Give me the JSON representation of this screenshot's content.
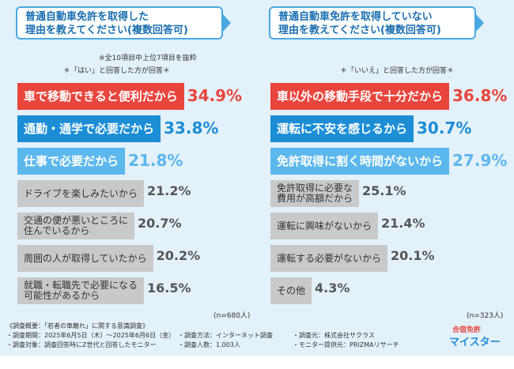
{
  "chart_data": [
    {
      "type": "bar",
      "orientation": "horizontal",
      "title": "普通自動車免許を取得した\n理由を教えてください(複数回答可)",
      "notes": [
        "※全10項目中上位7項目を抜粋",
        "＊「はい」と回答した方が回答＊"
      ],
      "sample_size": "(n=680人)",
      "categories": [
        "車で移動できると便利だから",
        "通勤・通学で必要だから",
        "仕事で必要だから",
        "ドライブを楽しみたいから",
        "交通の便が悪いところに\n住んでいるから",
        "周囲の人が取得していたから",
        "就職・転職先で必要になる\n可能性があるから"
      ],
      "values": [
        34.9,
        33.8,
        21.8,
        21.2,
        20.7,
        20.2,
        16.5
      ],
      "value_labels": [
        "34.9%",
        "33.8%",
        "21.8%",
        "21.2%",
        "20.7%",
        "20.2%",
        "16.5%"
      ],
      "colors": [
        "#e8453c",
        "#1b8ed6",
        "#5bb8ec",
        "#c9c9c9",
        "#c9c9c9",
        "#c9c9c9",
        "#c9c9c9"
      ],
      "value_colors": [
        "#e8453c",
        "#1b8ed6",
        "#5bb8ec",
        "#555555",
        "#555555",
        "#555555",
        "#555555"
      ]
    },
    {
      "type": "bar",
      "orientation": "horizontal",
      "title": "普通自動車免許を取得していない\n理由を教えてください(複数回答可)",
      "notes": [
        "＊「いいえ」と回答した方が回答＊"
      ],
      "sample_size": "(n=323人)",
      "categories": [
        "車以外の移動手段で十分だから",
        "運転に不安を感じるから",
        "免許取得に割く時間がないから",
        "免許取得に必要な\n費用が高額だから",
        "運転に興味がないから",
        "運転する必要がないから",
        "その他"
      ],
      "values": [
        36.8,
        30.7,
        27.9,
        25.1,
        21.4,
        20.1,
        4.3
      ],
      "value_labels": [
        "36.8%",
        "30.7%",
        "27.9%",
        "25.1%",
        "21.4%",
        "20.1%",
        "4.3%"
      ],
      "colors": [
        "#e8453c",
        "#1b8ed6",
        "#5bb8ec",
        "#c9c9c9",
        "#c9c9c9",
        "#c9c9c9",
        "#c9c9c9"
      ],
      "value_colors": [
        "#e8453c",
        "#1b8ed6",
        "#5bb8ec",
        "#555555",
        "#555555",
        "#555555",
        "#555555"
      ]
    }
  ],
  "footer": {
    "lines": [
      [
        "《調査概要：「若者の車離れ」に関する意識調査》"
      ],
      [
        "・調査期間：2025年6月5日（木）～2025年6月6日（金）",
        "・調査方法：インターネット調査",
        "・調査元：株式会社サクラス"
      ],
      [
        "・調査対象：調査回答時にZ世代と回答したモニター",
        "・調査人数：1,003人",
        "・モニター提供元：PRIZMAリサーチ"
      ]
    ]
  },
  "logo": {
    "top": "合宿免許",
    "bottom": "マイスター"
  }
}
